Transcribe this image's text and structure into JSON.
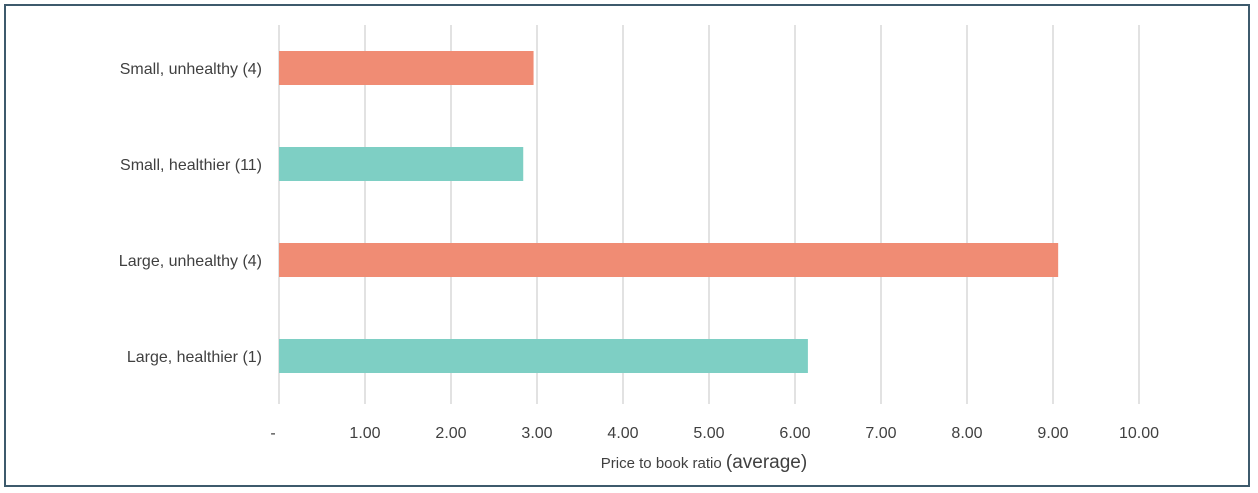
{
  "chart_data": {
    "type": "bar",
    "orientation": "horizontal",
    "categories": [
      "Small, unhealthy (4)",
      "Small, healthier (11)",
      "Large, unhealthy (4)",
      "Large, healthier (1)"
    ],
    "values": [
      2.96,
      2.84,
      9.06,
      6.15
    ],
    "colors": [
      "#f08c74",
      "#7ecfc4",
      "#f08c74",
      "#7ecfc4"
    ],
    "xlabel": "Price to book ratio",
    "xlabel_suffix": "(average)",
    "xlim": [
      0,
      10
    ],
    "xticks": [
      "-",
      "1.00",
      "2.00",
      "3.00",
      "4.00",
      "5.00",
      "6.00",
      "7.00",
      "8.00",
      "9.00",
      "10.00"
    ],
    "grid": true,
    "gridline_color": "#d9d9d9",
    "border_color": "#3d5a6c"
  }
}
